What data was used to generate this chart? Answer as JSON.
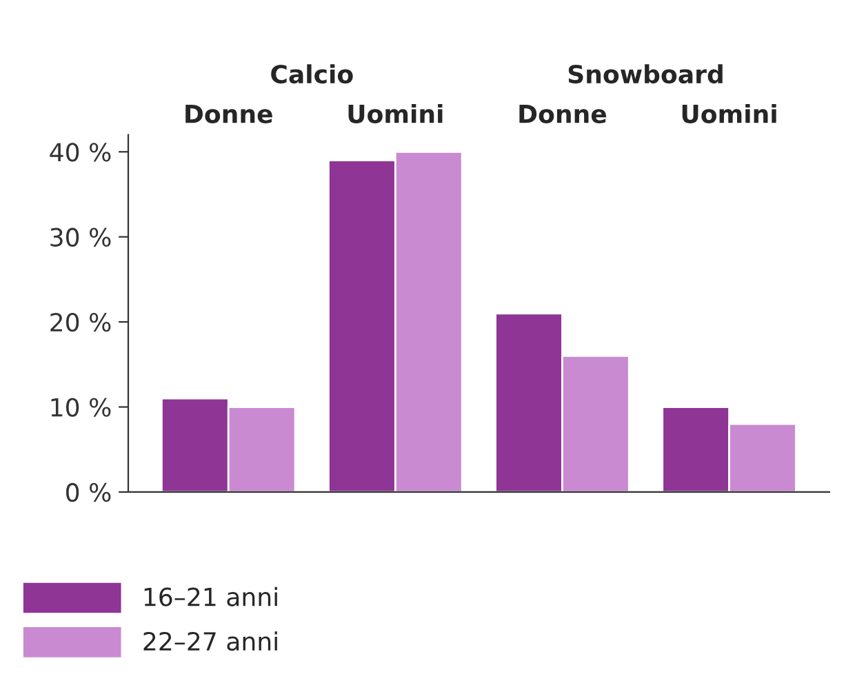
{
  "chart_data": {
    "type": "bar",
    "categories": [
      "Donne",
      "Uomini",
      "Donne",
      "Uomini"
    ],
    "series": [
      {
        "name": "16–21 anni",
        "color": "#8e3596",
        "values": [
          11,
          39,
          21,
          10
        ]
      },
      {
        "name": "22–27 anni",
        "color": "#c98ad1",
        "values": [
          10,
          40,
          16,
          8
        ]
      }
    ],
    "annotations": [
      "Calcio",
      "Snowboard"
    ],
    "ylim": [
      0,
      42
    ],
    "yticks": [
      {
        "value": 0,
        "label": "0 %"
      },
      {
        "value": 10,
        "label": "10 %"
      },
      {
        "value": 20,
        "label": "20 %"
      },
      {
        "value": 30,
        "label": "30 %"
      },
      {
        "value": 40,
        "label": "40 %"
      }
    ],
    "grid": false,
    "legend": "bottom left"
  }
}
